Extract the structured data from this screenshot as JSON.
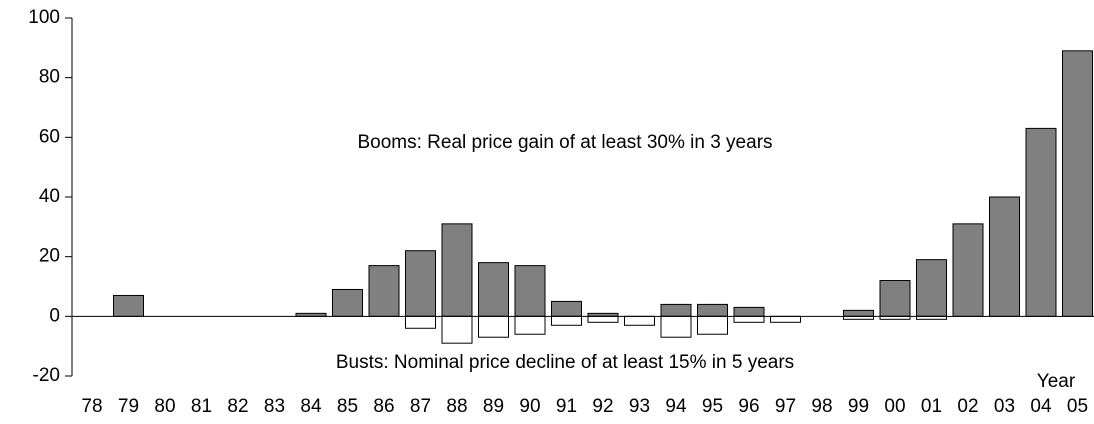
{
  "chart_data": {
    "type": "bar",
    "categories": [
      "78",
      "79",
      "80",
      "81",
      "82",
      "83",
      "84",
      "85",
      "86",
      "87",
      "88",
      "89",
      "90",
      "91",
      "92",
      "93",
      "94",
      "95",
      "96",
      "97",
      "98",
      "99",
      "00",
      "01",
      "02",
      "03",
      "04",
      "05"
    ],
    "series": [
      {
        "color": "#808080",
        "values": [
          null,
          7,
          null,
          null,
          null,
          null,
          1,
          9,
          17,
          22,
          31,
          18,
          17,
          5,
          1,
          null,
          4,
          4,
          3,
          null,
          null,
          2,
          12,
          19,
          31,
          40,
          63,
          89
        ]
      },
      {
        "color": "#ffffff",
        "values": [
          null,
          null,
          null,
          null,
          null,
          null,
          null,
          null,
          null,
          -4,
          -9,
          -7,
          -6,
          -3,
          -2,
          -3,
          -7,
          -6,
          -2,
          -2,
          null,
          -1,
          -1,
          -1,
          null,
          null,
          null,
          null
        ]
      }
    ],
    "ylim": [
      -20,
      100
    ],
    "yticks": [
      -20,
      0,
      20,
      40,
      60,
      80,
      100
    ],
    "x_label": "Year",
    "annotations": [
      {
        "text": "Booms: Real price gain of at least 30% in 3 years",
        "color": "#000000"
      },
      {
        "text": "Busts: Nominal price decline of at least 15% in 5 years",
        "color": "#ff0000"
      }
    ]
  }
}
